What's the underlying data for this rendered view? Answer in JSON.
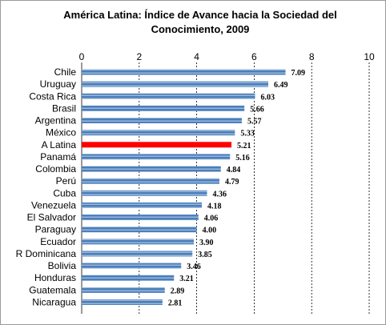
{
  "chart_data": {
    "type": "bar",
    "orientation": "horizontal",
    "title": "América Latina: Índice de Avance hacia la Sociedad del Conocimiento, 2009",
    "categories": [
      "Chile",
      "Uruguay",
      "Costa Rica",
      "Brasil",
      "Argentina",
      "México",
      "A Latina",
      "Panamá",
      "Colombia",
      "Perú",
      "Cuba",
      "Venezuela",
      "El Salvador",
      "Paraguay",
      "Ecuador",
      "R Dominicana",
      "Bolivia",
      "Honduras",
      "Guatemala",
      "Nicaragua"
    ],
    "values": [
      7.09,
      6.49,
      6.03,
      5.66,
      5.57,
      5.33,
      5.21,
      5.16,
      4.84,
      4.79,
      4.36,
      4.18,
      4.06,
      4.0,
      3.9,
      3.85,
      3.46,
      3.21,
      2.89,
      2.81
    ],
    "value_labels": [
      "7.09",
      "6.49",
      "6.03",
      "5.66",
      "5.57",
      "5.33",
      "5.21",
      "5.16",
      "4.84",
      "4.79",
      "4.36",
      "4.18",
      "4.06",
      "4.00",
      "3.90",
      "3.85",
      "3.46",
      "3.21",
      "2.89",
      "2.81"
    ],
    "highlight_category": "A Latina",
    "xlim": [
      0,
      10
    ],
    "xticks": [
      "0",
      "2",
      "4",
      "6",
      "8",
      "10"
    ],
    "x_axis_position": "top",
    "grid": "vertical dashed",
    "colors": {
      "bar": "#4a7ebb",
      "bar_stripe": "#ffffff",
      "highlight": "#ff0000",
      "grid": "#000000"
    }
  }
}
